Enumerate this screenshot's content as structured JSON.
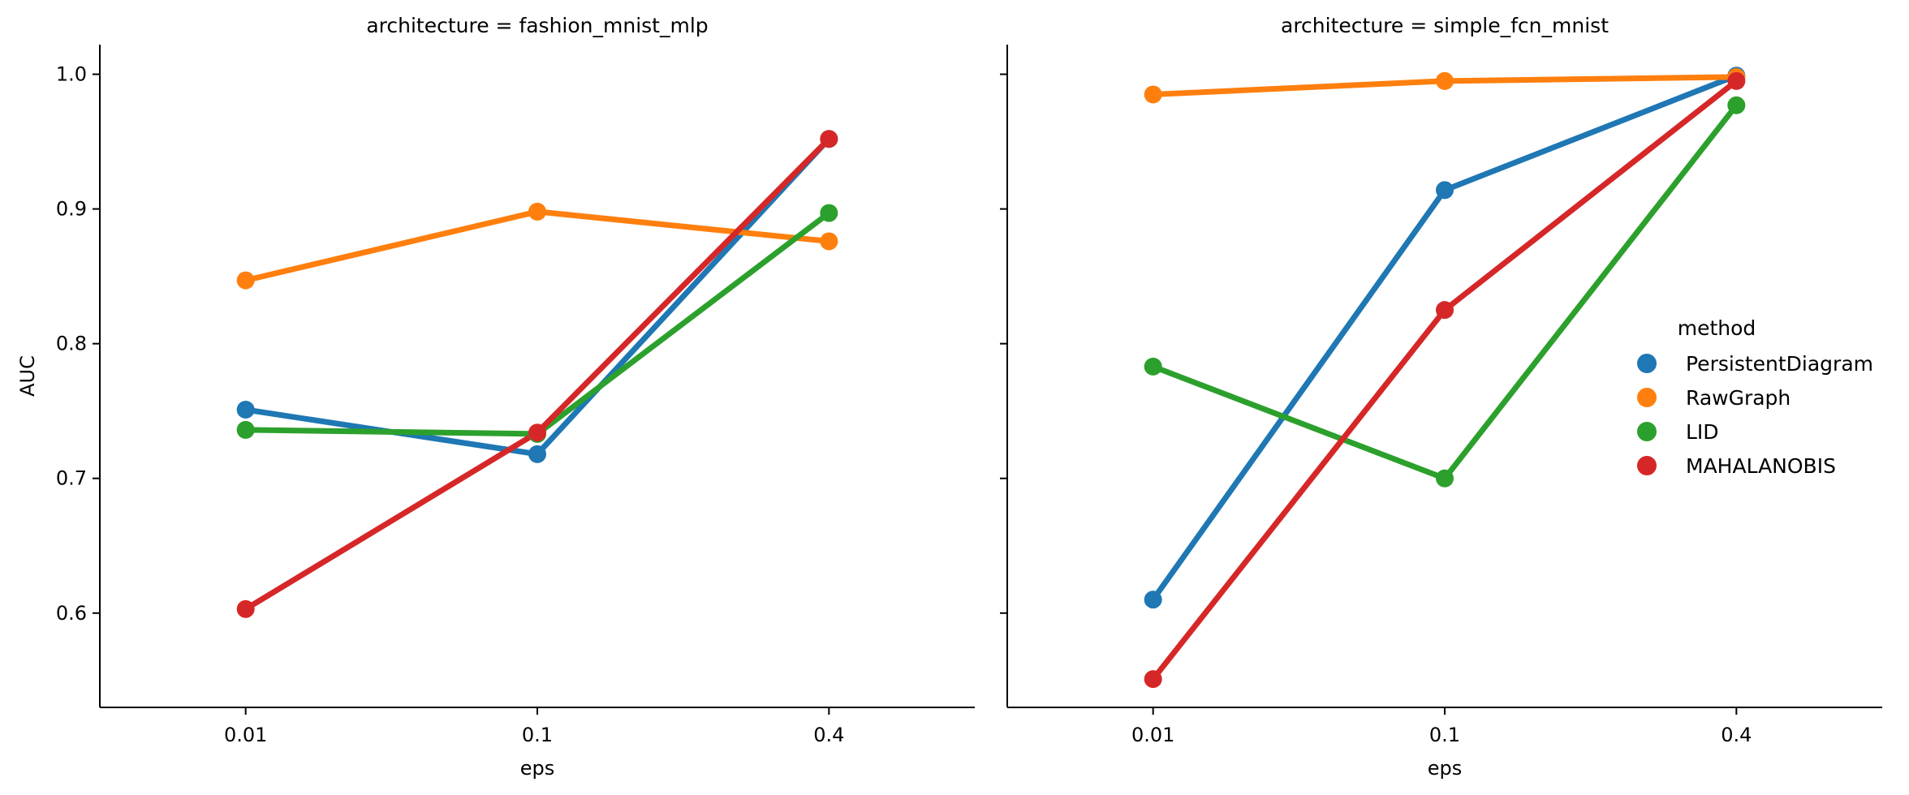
{
  "chart_data": {
    "type": "line",
    "x_label": "eps",
    "y_label": "AUC",
    "categories": [
      "0.01",
      "0.1",
      "0.4"
    ],
    "y_ticks": [
      "0.6",
      "0.7",
      "0.8",
      "0.9",
      "1.0"
    ],
    "ylim": [
      0.53,
      1.022
    ],
    "grid": false,
    "legend": {
      "title": "method",
      "placement": "right"
    },
    "panels": [
      {
        "title": "architecture = fashion_mnist_mlp",
        "series": [
          {
            "name": "PersistentDiagram",
            "color": "#1f77b4",
            "values": [
              0.751,
              0.718,
              0.952
            ]
          },
          {
            "name": "RawGraph",
            "color": "#ff7f0e",
            "values": [
              0.847,
              0.898,
              0.876
            ]
          },
          {
            "name": "LID",
            "color": "#2ca02c",
            "values": [
              0.736,
              0.733,
              0.897
            ]
          },
          {
            "name": "MAHALANOBIS",
            "color": "#d62728",
            "values": [
              0.603,
              0.734,
              0.952
            ]
          }
        ]
      },
      {
        "title": "architecture = simple_fcn_mnist",
        "series": [
          {
            "name": "PersistentDiagram",
            "color": "#1f77b4",
            "values": [
              0.61,
              0.914,
              0.999
            ]
          },
          {
            "name": "RawGraph",
            "color": "#ff7f0e",
            "values": [
              0.985,
              0.995,
              0.998
            ]
          },
          {
            "name": "LID",
            "color": "#2ca02c",
            "values": [
              0.783,
              0.7,
              0.977
            ]
          },
          {
            "name": "MAHALANOBIS",
            "color": "#d62728",
            "values": [
              0.551,
              0.825,
              0.995
            ]
          }
        ]
      }
    ]
  }
}
